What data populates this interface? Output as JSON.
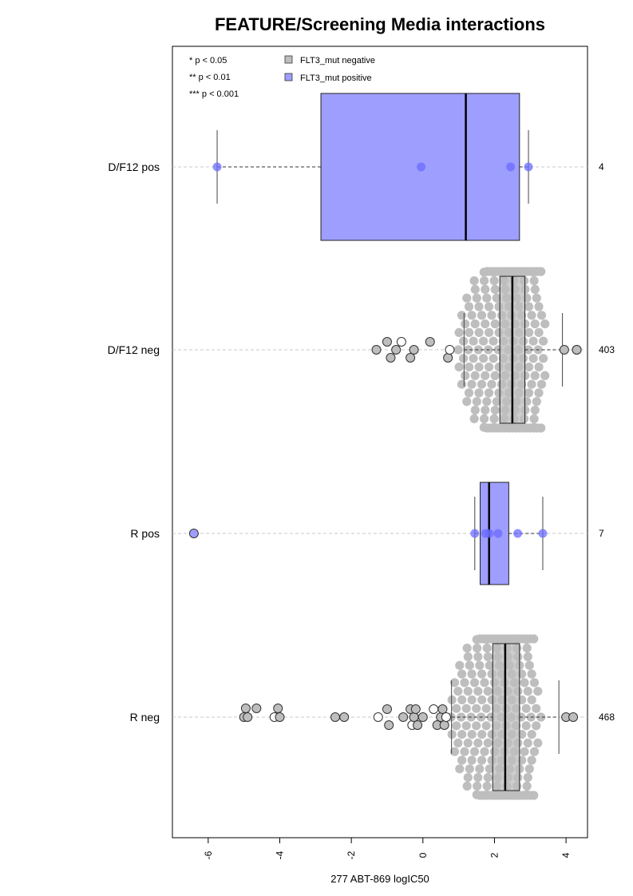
{
  "chart_data": {
    "type": "box-beeswarm",
    "orientation": "horizontal",
    "title": "FEATURE/Screening Media interactions",
    "xlabel": "277 ABT-869 logIC50",
    "xlim": [
      -7,
      4.6
    ],
    "xticks": [
      -6,
      -4,
      -2,
      0,
      2,
      4
    ],
    "xtick_labels": [
      "-6",
      "-4",
      "-2",
      "0",
      "2",
      "4"
    ],
    "significance_legend": [
      "* p < 0.05",
      "** p < 0.01",
      "*** p < 0.001"
    ],
    "legend": [
      {
        "label": "FLT3_mut negative",
        "color": "#bebebe"
      },
      {
        "label": "FLT3_mut positive",
        "color": "#9e9eff"
      }
    ],
    "groups": [
      {
        "label": "D/F12 pos",
        "n": "4",
        "series": "FLT3_mut positive",
        "box": {
          "whisker_low": -5.75,
          "q1": -2.85,
          "median": 1.2,
          "q3": 2.7,
          "whisker_high": 2.95
        },
        "outliers": [],
        "points": [
          -5.75,
          -0.05,
          2.45,
          2.95
        ]
      },
      {
        "label": "D/F12 neg",
        "n": "403",
        "series": "FLT3_mut negative",
        "box": {
          "whisker_low": 1.15,
          "q1": 2.15,
          "median": 2.5,
          "q3": 2.85,
          "whisker_high": 3.9
        },
        "outliers": [
          -1.3,
          -1.0,
          -0.9,
          -0.75,
          -0.6,
          -0.35,
          -0.25,
          0.2,
          0.7,
          0.75,
          3.95,
          4.3,
          4.3
        ],
        "points": []
      },
      {
        "label": "R pos",
        "n": "7",
        "series": "FLT3_mut positive",
        "box": {
          "whisker_low": 1.45,
          "q1": 1.6,
          "median": 1.85,
          "q3": 2.4,
          "whisker_high": 3.35
        },
        "outliers": [
          -6.4
        ],
        "points": [
          1.45,
          1.75,
          1.85,
          2.1,
          2.65,
          3.35
        ]
      },
      {
        "label": "R neg",
        "n": "468",
        "series": "FLT3_mut negative",
        "box": {
          "whisker_low": 0.8,
          "q1": 1.95,
          "median": 2.3,
          "q3": 2.7,
          "whisker_high": 3.8
        },
        "outliers": [
          -5.0,
          -4.95,
          -4.9,
          -4.65,
          -4.15,
          -4.05,
          -4.0,
          -2.45,
          -2.2,
          -1.25,
          -1.0,
          -0.95,
          -0.55,
          -0.35,
          -0.3,
          -0.25,
          -0.2,
          -0.15,
          0.0,
          0.3,
          0.4,
          0.5,
          0.55,
          0.6,
          0.65,
          4.0,
          4.2
        ],
        "points": []
      }
    ]
  }
}
